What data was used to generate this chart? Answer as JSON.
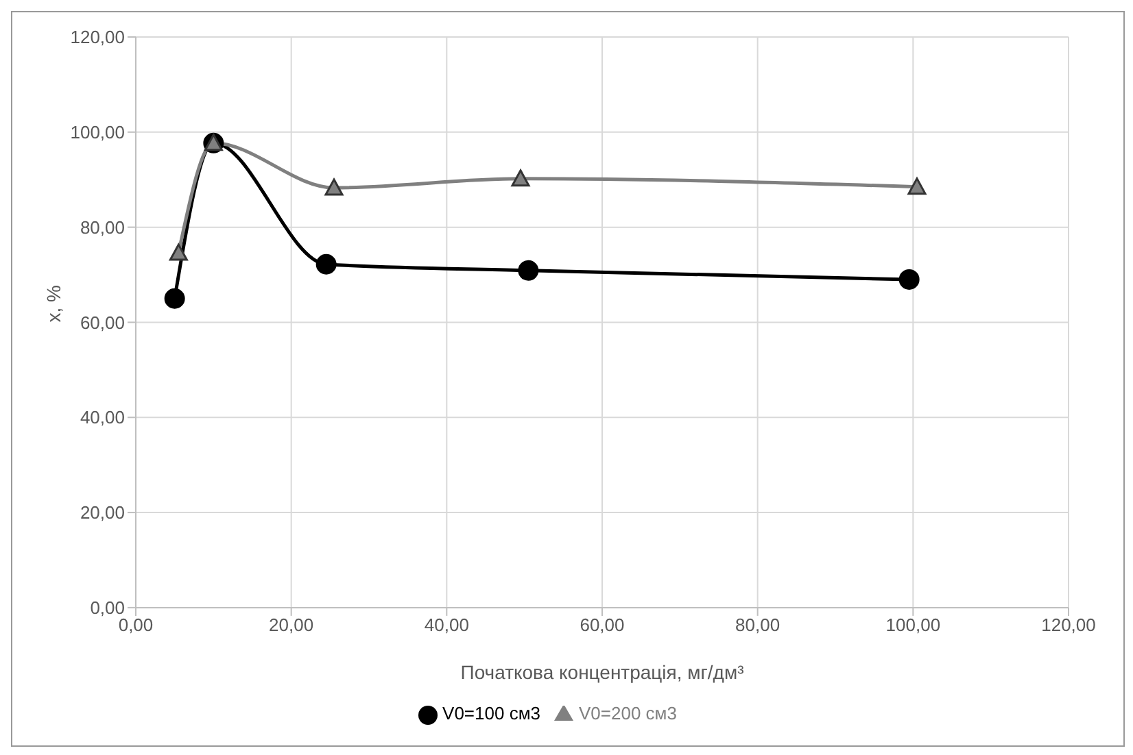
{
  "chart_data": {
    "type": "line",
    "xlabel": "Початкова концентрація, мг/дм³",
    "ylabel": "x, %",
    "xlim": [
      0,
      120
    ],
    "ylim": [
      0,
      120
    ],
    "xticks": [
      {
        "value": 0,
        "label": "0,00"
      },
      {
        "value": 20,
        "label": "20,00"
      },
      {
        "value": 40,
        "label": "40,00"
      },
      {
        "value": 60,
        "label": "60,00"
      },
      {
        "value": 80,
        "label": "80,00"
      },
      {
        "value": 100,
        "label": "100,00"
      },
      {
        "value": 120,
        "label": "120,00"
      }
    ],
    "yticks": [
      {
        "value": 0,
        "label": "0,00"
      },
      {
        "value": 20,
        "label": "20,00"
      },
      {
        "value": 40,
        "label": "40,00"
      },
      {
        "value": 60,
        "label": "60,00"
      },
      {
        "value": 80,
        "label": "80,00"
      },
      {
        "value": 100,
        "label": "100,00"
      },
      {
        "value": 120,
        "label": "120,00"
      }
    ],
    "grid": true,
    "legend": "bottom",
    "series": [
      {
        "name": "V0=100 см3",
        "color": "#000000",
        "marker": "circle",
        "x": [
          5,
          10,
          24.5,
          50.5,
          99.5
        ],
        "values": [
          65,
          97.7,
          72.2,
          70.9,
          69
        ]
      },
      {
        "name": "V0=200 см3",
        "color": "#808080",
        "marker": "triangle",
        "x": [
          5.5,
          10,
          25.5,
          49.5,
          100.5
        ],
        "values": [
          74.6,
          97.7,
          88.3,
          90.2,
          88.5
        ]
      }
    ]
  }
}
